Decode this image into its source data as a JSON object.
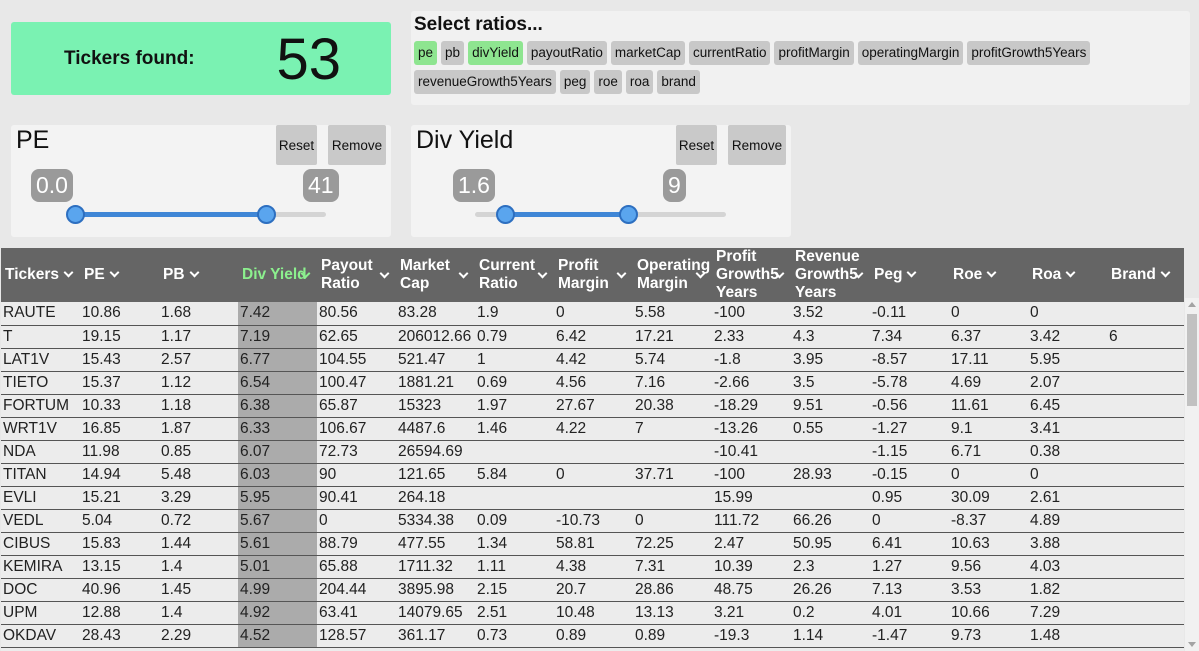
{
  "found": {
    "label": "Tickers found:",
    "count": "53"
  },
  "ratios": {
    "title": "Select ratios...",
    "chips": [
      {
        "label": "pe",
        "active": true
      },
      {
        "label": "pb",
        "active": false
      },
      {
        "label": "divYield",
        "active": true
      },
      {
        "label": "payoutRatio",
        "active": false
      },
      {
        "label": "marketCap",
        "active": false
      },
      {
        "label": "currentRatio",
        "active": false
      },
      {
        "label": "profitMargin",
        "active": false
      },
      {
        "label": "operatingMargin",
        "active": false
      },
      {
        "label": "profitGrowth5Years",
        "active": false
      },
      {
        "label": "revenueGrowth5Years",
        "active": false
      },
      {
        "label": "peg",
        "active": false
      },
      {
        "label": "roe",
        "active": false
      },
      {
        "label": "roa",
        "active": false
      },
      {
        "label": "brand",
        "active": false
      }
    ]
  },
  "filters": [
    {
      "title": "PE",
      "reset": "Reset",
      "remove": "Remove",
      "min_label": "0.0",
      "max_label": "41",
      "low_fraction": 0.0,
      "high_fraction": 0.76
    },
    {
      "title": "Div Yield",
      "reset": "Reset",
      "remove": "Remove",
      "min_label": "1.6",
      "max_label": "9",
      "low_fraction": 0.12,
      "high_fraction": 0.61
    }
  ],
  "table": {
    "columns": [
      {
        "label": "Tickers"
      },
      {
        "label": "PE"
      },
      {
        "label": "PB"
      },
      {
        "label": "Div Yield",
        "sorted": true
      },
      {
        "label": "Payout Ratio"
      },
      {
        "label": "Market Cap"
      },
      {
        "label": "Current Ratio"
      },
      {
        "label": "Profit Margin"
      },
      {
        "label": "Operating Margin"
      },
      {
        "label": "Profit Growth5 Years"
      },
      {
        "label": "Revenue Growth5 Years"
      },
      {
        "label": "Peg"
      },
      {
        "label": "Roe"
      },
      {
        "label": "Roa"
      },
      {
        "label": "Brand"
      }
    ],
    "rows": [
      [
        "RAUTE",
        "10.86",
        "1.68",
        "7.42",
        "80.56",
        "83.28",
        "1.9",
        "0",
        "5.58",
        "-100",
        "3.52",
        "-0.11",
        "0",
        "0",
        ""
      ],
      [
        "T",
        "19.15",
        "1.17",
        "7.19",
        "62.65",
        "206012.66",
        "0.79",
        "6.42",
        "17.21",
        "2.33",
        "4.3",
        "7.34",
        "6.37",
        "3.42",
        "6"
      ],
      [
        "LAT1V",
        "15.43",
        "2.57",
        "6.77",
        "104.55",
        "521.47",
        "1",
        "4.42",
        "5.74",
        "-1.8",
        "3.95",
        "-8.57",
        "17.11",
        "5.95",
        ""
      ],
      [
        "TIETO",
        "15.37",
        "1.12",
        "6.54",
        "100.47",
        "1881.21",
        "0.69",
        "4.56",
        "7.16",
        "-2.66",
        "3.5",
        "-5.78",
        "4.69",
        "2.07",
        ""
      ],
      [
        "FORTUM",
        "10.33",
        "1.18",
        "6.38",
        "65.87",
        "15323",
        "1.97",
        "27.67",
        "20.38",
        "-18.29",
        "9.51",
        "-0.56",
        "11.61",
        "6.45",
        ""
      ],
      [
        "WRT1V",
        "16.85",
        "1.87",
        "6.33",
        "106.67",
        "4487.6",
        "1.46",
        "4.22",
        "7",
        "-13.26",
        "0.55",
        "-1.27",
        "9.1",
        "3.41",
        ""
      ],
      [
        "NDA",
        "11.98",
        "0.85",
        "6.07",
        "72.73",
        "26594.69",
        "",
        "",
        "",
        "-10.41",
        "",
        "-1.15",
        "6.71",
        "0.38",
        ""
      ],
      [
        "TITAN",
        "14.94",
        "5.48",
        "6.03",
        "90",
        "121.65",
        "5.84",
        "0",
        "37.71",
        "-100",
        "28.93",
        "-0.15",
        "0",
        "0",
        ""
      ],
      [
        "EVLI",
        "15.21",
        "3.29",
        "5.95",
        "90.41",
        "264.18",
        "",
        "",
        "",
        "15.99",
        "",
        "0.95",
        "30.09",
        "2.61",
        ""
      ],
      [
        "VEDL",
        "5.04",
        "0.72",
        "5.67",
        "0",
        "5334.38",
        "0.09",
        "-10.73",
        "0",
        "111.72",
        "66.26",
        "0",
        "-8.37",
        "4.89",
        ""
      ],
      [
        "CIBUS",
        "15.83",
        "1.44",
        "5.61",
        "88.79",
        "477.55",
        "1.34",
        "58.81",
        "72.25",
        "2.47",
        "50.95",
        "6.41",
        "10.63",
        "3.88",
        ""
      ],
      [
        "KEMIRA",
        "13.15",
        "1.4",
        "5.01",
        "65.88",
        "1711.32",
        "1.11",
        "4.38",
        "7.31",
        "10.39",
        "2.3",
        "1.27",
        "9.56",
        "4.03",
        ""
      ],
      [
        "DOC",
        "40.96",
        "1.45",
        "4.99",
        "204.44",
        "3895.98",
        "2.15",
        "20.7",
        "28.86",
        "48.75",
        "26.26",
        "7.13",
        "3.53",
        "1.82",
        ""
      ],
      [
        "UPM",
        "12.88",
        "1.4",
        "4.92",
        "63.41",
        "14079.65",
        "2.51",
        "10.48",
        "13.13",
        "3.21",
        "0.2",
        "4.01",
        "10.66",
        "7.29",
        ""
      ],
      [
        "OKDAV",
        "28.43",
        "2.29",
        "4.52",
        "128.57",
        "361.17",
        "0.73",
        "0.89",
        "0.89",
        "-19.3",
        "1.14",
        "-1.47",
        "9.73",
        "1.48",
        ""
      ]
    ]
  }
}
